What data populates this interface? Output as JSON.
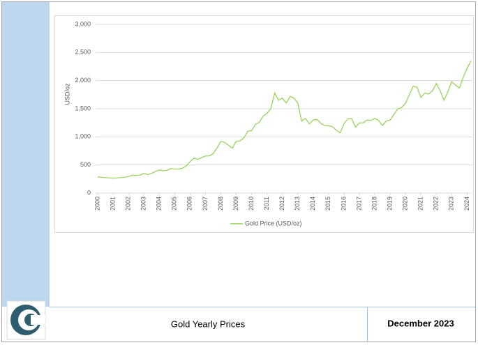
{
  "chart_data": {
    "type": "line",
    "y_label": "USD/oz",
    "x": [
      2000,
      2000.25,
      2000.5,
      2000.75,
      2001,
      2001.25,
      2001.5,
      2001.75,
      2002,
      2002.25,
      2002.5,
      2002.75,
      2003,
      2003.25,
      2003.5,
      2003.75,
      2004,
      2004.25,
      2004.5,
      2004.75,
      2005,
      2005.25,
      2005.5,
      2005.75,
      2006,
      2006.25,
      2006.5,
      2006.75,
      2007,
      2007.25,
      2007.5,
      2007.75,
      2008,
      2008.25,
      2008.5,
      2008.75,
      2009,
      2009.25,
      2009.5,
      2009.75,
      2010,
      2010.25,
      2010.5,
      2010.75,
      2011,
      2011.25,
      2011.5,
      2011.75,
      2012,
      2012.25,
      2012.5,
      2012.75,
      2013,
      2013.25,
      2013.5,
      2013.75,
      2014,
      2014.25,
      2014.5,
      2014.75,
      2015,
      2015.25,
      2015.5,
      2015.75,
      2016,
      2016.25,
      2016.5,
      2016.75,
      2017,
      2017.25,
      2017.5,
      2017.75,
      2018,
      2018.25,
      2018.5,
      2018.75,
      2019,
      2019.25,
      2019.5,
      2019.75,
      2020,
      2020.25,
      2020.5,
      2020.75,
      2021,
      2021.25,
      2021.5,
      2021.75,
      2022,
      2022.25,
      2022.5,
      2022.75,
      2023,
      2023.25,
      2023.5,
      2023.75,
      2024,
      2024.25
    ],
    "series": [
      {
        "name": "Gold Price (USD/oz)",
        "color": "#92d050",
        "values": [
          290,
          280,
          275,
          270,
          265,
          270,
          275,
          280,
          295,
          315,
          315,
          320,
          350,
          330,
          350,
          385,
          410,
          395,
          405,
          435,
          430,
          425,
          440,
          480,
          560,
          620,
          600,
          630,
          660,
          660,
          700,
          800,
          920,
          900,
          850,
          800,
          920,
          930,
          980,
          1100,
          1110,
          1220,
          1260,
          1370,
          1420,
          1500,
          1780,
          1650,
          1690,
          1600,
          1720,
          1690,
          1600,
          1280,
          1330,
          1230,
          1300,
          1310,
          1240,
          1200,
          1200,
          1180,
          1120,
          1070,
          1230,
          1320,
          1320,
          1170,
          1250,
          1250,
          1300,
          1290,
          1330,
          1290,
          1200,
          1280,
          1300,
          1400,
          1500,
          1520,
          1600,
          1750,
          1900,
          1880,
          1700,
          1780,
          1760,
          1820,
          1950,
          1820,
          1650,
          1800,
          1980,
          1920,
          1870,
          2060,
          2220,
          2350
        ]
      }
    ],
    "xlim": [
      2000,
      2024.3
    ],
    "xticks": [
      2000,
      2001,
      2002,
      2003,
      2004,
      2005,
      2006,
      2007,
      2008,
      2009,
      2010,
      2011,
      2012,
      2013,
      2014,
      2015,
      2016,
      2017,
      2018,
      2019,
      2020,
      2021,
      2022,
      2023,
      2024
    ],
    "ylim": [
      0,
      3000
    ],
    "yticks": [
      0,
      500,
      {
        "value": 1000,
        "label": "1,000"
      },
      {
        "value": 1500,
        "label": "1,500"
      },
      {
        "value": 2000,
        "label": "2,000"
      },
      {
        "value": 2500,
        "label": "2,500"
      },
      {
        "value": 3000,
        "label": "3,000"
      }
    ],
    "grid": true
  },
  "footer": {
    "title": "Gold Yearly Prices",
    "date": "December 2023"
  }
}
